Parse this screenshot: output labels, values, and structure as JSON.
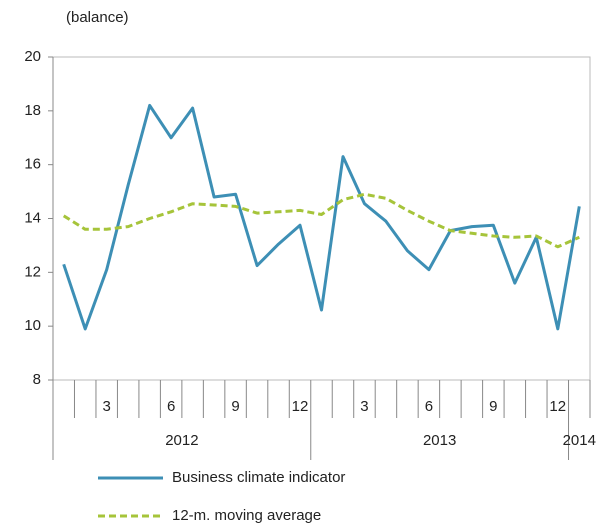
{
  "chart_data": {
    "type": "line",
    "y_label": "(balance)",
    "categories": [
      null,
      null,
      "3",
      null,
      null,
      "6",
      null,
      null,
      "9",
      null,
      null,
      "12",
      null,
      null,
      "3",
      null,
      null,
      "6",
      null,
      null,
      "9",
      null,
      null,
      "12",
      null
    ],
    "groups": [
      "2012",
      "2013",
      "2014"
    ],
    "series": [
      {
        "name": "Business climate indicator",
        "color": "#3d8fb5",
        "dash": false,
        "values": [
          12.3,
          9.9,
          12.1,
          15.25,
          18.2,
          17.0,
          18.1,
          14.8,
          14.9,
          12.25,
          13.05,
          13.75,
          10.6,
          16.3,
          14.55,
          13.9,
          12.8,
          12.1,
          13.55,
          13.7,
          13.75,
          11.6,
          13.3,
          9.9,
          14.45
        ]
      },
      {
        "name": "12-m. moving average",
        "color": "#a6c43a",
        "dash": true,
        "values": [
          14.1,
          13.6,
          13.6,
          13.7,
          14.0,
          14.25,
          14.55,
          14.5,
          14.45,
          14.2,
          14.25,
          14.3,
          14.15,
          14.7,
          14.9,
          14.75,
          14.3,
          13.9,
          13.55,
          13.45,
          13.35,
          13.3,
          13.35,
          12.95,
          13.3
        ]
      }
    ],
    "ylim": [
      8,
      20
    ],
    "yticks": [
      8,
      10,
      12,
      14,
      16,
      18,
      20
    ],
    "grid": false
  }
}
